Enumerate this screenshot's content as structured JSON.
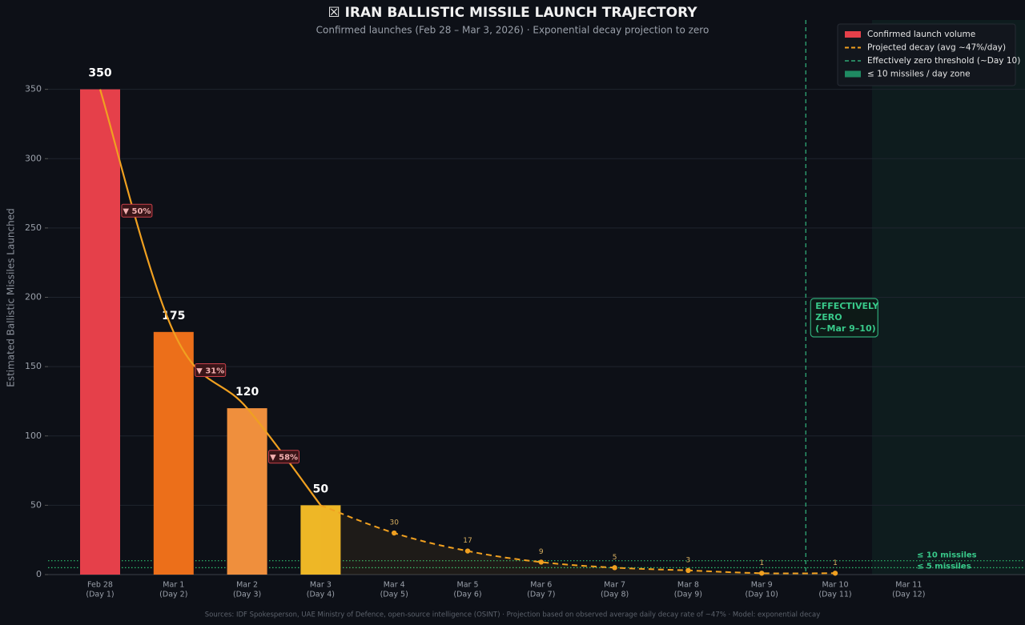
{
  "chart_data": {
    "type": "bar",
    "title": "☒  IRAN BALLISTIC MISSILE LAUNCH TRAJECTORY",
    "subtitle": "Confirmed launches (Feb 28 – Mar 3, 2026)  ·  Exponential decay projection to zero",
    "y_label": "Estimated Ballistic Missiles Launched",
    "categories": [
      "Feb 28",
      "Mar 1",
      "Mar 2",
      "Mar 3",
      "Mar 4",
      "Mar 5",
      "Mar 6",
      "Mar 7",
      "Mar 8",
      "Mar 9",
      "Mar 10",
      "Mar 11"
    ],
    "day_labels": [
      "(Day 1)",
      "(Day 2)",
      "(Day 3)",
      "(Day 4)",
      "(Day 5)",
      "(Day 6)",
      "(Day 7)",
      "(Day 8)",
      "(Day 9)",
      "(Day 10)",
      "(Day 11)",
      "(Day 12)"
    ],
    "series": [
      {
        "name": "Confirmed launch volume",
        "color": "#e5404a",
        "bar_colors": [
          "#e5404a",
          "#ec6f1a",
          "#ef8f3d",
          "#eeb726"
        ],
        "values": [
          350,
          175,
          120,
          50,
          null,
          null,
          null,
          null,
          null,
          null,
          null,
          null
        ]
      },
      {
        "name": "Projected decay (avg ~47%/day)",
        "color": "#f0a020",
        "projection_start": 3,
        "values": [
          350,
          175,
          120,
          50,
          30,
          17,
          9,
          5,
          3,
          1,
          1,
          null
        ]
      }
    ],
    "drop_labels": [
      "▼ 50%",
      "▼ 31%",
      "▼ 58%"
    ],
    "threshold": {
      "name": "Effectively zero threshold (~Day 10)",
      "color": "#2fa877",
      "position": 9.6,
      "annotation": [
        "EFFECTIVELY",
        "ZERO",
        "(~Mar 9–10)"
      ]
    },
    "zone": {
      "name": "≤ 10 missiles / day zone",
      "color": "#1f8a62",
      "start": 10.5
    },
    "reference_lines": [
      {
        "value": 10,
        "label": "≤ 10 missiles"
      },
      {
        "value": 5,
        "label": "≤ 5 missiles"
      }
    ],
    "ylim": [
      0,
      400
    ],
    "yticks": [
      0,
      50,
      100,
      150,
      200,
      250,
      300,
      350
    ],
    "grid": true,
    "legend": "top-right",
    "footer": "Sources: IDF Spokesperson, UAE Ministry of Defence, open-source intelligence (OSINT)  ·  Projection based on observed average daily decay rate of ~47%  ·  Model: exponential decay"
  }
}
